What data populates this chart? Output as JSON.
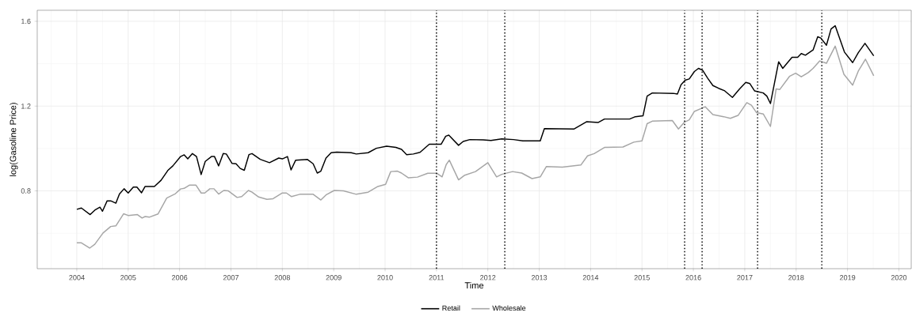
{
  "chart_data": {
    "type": "line",
    "xlabel": "Time",
    "ylabel": "log(Gasoline Price)",
    "xlim": [
      2003.23,
      2020.24
    ],
    "ylim": [
      0.433,
      1.652
    ],
    "xticks": [
      2004,
      2005,
      2006,
      2007,
      2008,
      2009,
      2010,
      2011,
      2012,
      2013,
      2014,
      2015,
      2016,
      2017,
      2018,
      2019,
      2020
    ],
    "yticks": [
      0.8,
      1.2,
      1.6
    ],
    "grid": true,
    "legend": "bottom",
    "line_style": "solid",
    "ref_lines": [
      {
        "axis": "x",
        "value": 2011.0,
        "line_style": "dotted",
        "color": "#000000"
      },
      {
        "axis": "x",
        "value": 2012.33,
        "line_style": "dotted",
        "color": "#000000"
      },
      {
        "axis": "x",
        "value": 2015.83,
        "line_style": "dotted",
        "color": "#000000"
      },
      {
        "axis": "x",
        "value": 2016.17,
        "line_style": "dotted",
        "color": "#000000"
      },
      {
        "axis": "x",
        "value": 2017.25,
        "line_style": "dotted",
        "color": "#000000"
      },
      {
        "axis": "x",
        "value": 2018.5,
        "line_style": "dotted",
        "color": "#000000"
      }
    ],
    "series": [
      {
        "name": "Retail",
        "color": "#000000",
        "x": [
          2004.0,
          2004.09,
          2004.26,
          2004.35,
          2004.45,
          2004.5,
          2004.59,
          2004.66,
          2004.76,
          2004.83,
          2004.92,
          2005.0,
          2005.1,
          2005.17,
          2005.26,
          2005.33,
          2005.51,
          2005.64,
          2005.77,
          2005.87,
          2006.02,
          2006.09,
          2006.16,
          2006.25,
          2006.33,
          2006.42,
          2006.5,
          2006.62,
          2006.68,
          2006.76,
          2006.85,
          2006.91,
          2007.02,
          2007.1,
          2007.18,
          2007.26,
          2007.35,
          2007.41,
          2007.57,
          2007.75,
          2007.93,
          2008.0,
          2008.1,
          2008.17,
          2008.26,
          2008.49,
          2008.6,
          2008.68,
          2008.75,
          2008.85,
          2008.95,
          2009.06,
          2009.34,
          2009.44,
          2009.67,
          2009.83,
          2010.03,
          2010.21,
          2010.32,
          2010.42,
          2010.55,
          2010.68,
          2010.86,
          2011.09,
          2011.18,
          2011.24,
          2011.43,
          2011.52,
          2011.65,
          2011.91,
          2012.06,
          2012.27,
          2012.5,
          2012.68,
          2013.02,
          2013.1,
          2013.68,
          2013.92,
          2014.15,
          2014.27,
          2014.76,
          2014.87,
          2015.02,
          2015.1,
          2015.2,
          2015.61,
          2015.69,
          2015.76,
          2015.84,
          2015.92,
          2016.02,
          2016.1,
          2016.18,
          2016.28,
          2016.38,
          2016.49,
          2016.61,
          2016.76,
          2016.9,
          2017.02,
          2017.1,
          2017.19,
          2017.36,
          2017.43,
          2017.5,
          2017.66,
          2017.74,
          2017.92,
          2018.03,
          2018.1,
          2018.18,
          2018.33,
          2018.42,
          2018.48,
          2018.59,
          2018.68,
          2018.76,
          2018.94,
          2019.1,
          2019.21,
          2019.34,
          2019.51
        ],
        "values": [
          0.713,
          0.719,
          0.688,
          0.709,
          0.723,
          0.704,
          0.753,
          0.753,
          0.742,
          0.785,
          0.81,
          0.79,
          0.818,
          0.818,
          0.791,
          0.821,
          0.821,
          0.85,
          0.896,
          0.918,
          0.962,
          0.97,
          0.951,
          0.976,
          0.962,
          0.877,
          0.939,
          0.962,
          0.962,
          0.918,
          0.976,
          0.974,
          0.93,
          0.928,
          0.906,
          0.897,
          0.971,
          0.976,
          0.949,
          0.933,
          0.955,
          0.951,
          0.962,
          0.899,
          0.945,
          0.948,
          0.928,
          0.884,
          0.893,
          0.955,
          0.98,
          0.983,
          0.98,
          0.974,
          0.98,
          1.001,
          1.011,
          1.005,
          0.996,
          0.971,
          0.974,
          0.982,
          1.02,
          1.02,
          1.058,
          1.063,
          1.015,
          1.033,
          1.042,
          1.041,
          1.038,
          1.045,
          1.042,
          1.036,
          1.036,
          1.094,
          1.092,
          1.126,
          1.123,
          1.139,
          1.139,
          1.15,
          1.154,
          1.247,
          1.262,
          1.26,
          1.257,
          1.301,
          1.322,
          1.328,
          1.363,
          1.378,
          1.369,
          1.331,
          1.297,
          1.284,
          1.272,
          1.241,
          1.281,
          1.312,
          1.306,
          1.272,
          1.262,
          1.247,
          1.212,
          1.409,
          1.378,
          1.43,
          1.43,
          1.448,
          1.44,
          1.465,
          1.527,
          1.521,
          1.487,
          1.564,
          1.579,
          1.455,
          1.405,
          1.452,
          1.496,
          1.437
        ]
      },
      {
        "name": "Wholesale",
        "color": "#a6a6a6",
        "x": [
          2004.0,
          2004.09,
          2004.25,
          2004.35,
          2004.51,
          2004.66,
          2004.76,
          2004.91,
          2005.0,
          2005.18,
          2005.27,
          2005.33,
          2005.41,
          2005.58,
          2005.75,
          2005.92,
          2006.02,
          2006.09,
          2006.19,
          2006.32,
          2006.42,
          2006.49,
          2006.59,
          2006.67,
          2006.76,
          2006.86,
          2006.95,
          2007.12,
          2007.21,
          2007.34,
          2007.41,
          2007.54,
          2007.7,
          2007.82,
          2008.0,
          2008.08,
          2008.18,
          2008.34,
          2008.6,
          2008.75,
          2008.85,
          2009.01,
          2009.19,
          2009.44,
          2009.67,
          2009.86,
          2010.01,
          2010.11,
          2010.24,
          2010.32,
          2010.45,
          2010.63,
          2010.83,
          2011.01,
          2011.11,
          2011.19,
          2011.25,
          2011.43,
          2011.55,
          2011.76,
          2012.0,
          2012.17,
          2012.27,
          2012.48,
          2012.66,
          2012.86,
          2013.02,
          2013.14,
          2013.45,
          2013.81,
          2013.94,
          2014.07,
          2014.27,
          2014.63,
          2014.84,
          2015.0,
          2015.1,
          2015.2,
          2015.59,
          2015.71,
          2015.82,
          2015.92,
          2016.02,
          2016.23,
          2016.38,
          2016.59,
          2016.72,
          2016.87,
          2017.04,
          2017.13,
          2017.23,
          2017.36,
          2017.5,
          2017.61,
          2017.68,
          2017.87,
          2017.99,
          2018.1,
          2018.24,
          2018.33,
          2018.46,
          2018.59,
          2018.76,
          2018.93,
          2019.1,
          2019.21,
          2019.35,
          2019.51
        ],
        "values": [
          0.555,
          0.555,
          0.53,
          0.548,
          0.601,
          0.632,
          0.635,
          0.692,
          0.684,
          0.688,
          0.672,
          0.679,
          0.676,
          0.691,
          0.766,
          0.787,
          0.809,
          0.812,
          0.827,
          0.827,
          0.79,
          0.79,
          0.81,
          0.81,
          0.785,
          0.802,
          0.8,
          0.769,
          0.773,
          0.802,
          0.794,
          0.771,
          0.76,
          0.763,
          0.79,
          0.79,
          0.773,
          0.784,
          0.784,
          0.757,
          0.781,
          0.802,
          0.8,
          0.784,
          0.794,
          0.821,
          0.831,
          0.891,
          0.893,
          0.884,
          0.862,
          0.865,
          0.883,
          0.883,
          0.866,
          0.924,
          0.945,
          0.852,
          0.874,
          0.891,
          0.933,
          0.866,
          0.878,
          0.891,
          0.884,
          0.858,
          0.866,
          0.915,
          0.912,
          0.922,
          0.965,
          0.976,
          1.005,
          1.007,
          1.03,
          1.036,
          1.117,
          1.129,
          1.132,
          1.092,
          1.123,
          1.135,
          1.175,
          1.197,
          1.16,
          1.15,
          1.142,
          1.156,
          1.216,
          1.204,
          1.169,
          1.163,
          1.104,
          1.281,
          1.278,
          1.34,
          1.355,
          1.338,
          1.359,
          1.378,
          1.413,
          1.402,
          1.483,
          1.35,
          1.299,
          1.365,
          1.421,
          1.343
        ]
      }
    ]
  }
}
